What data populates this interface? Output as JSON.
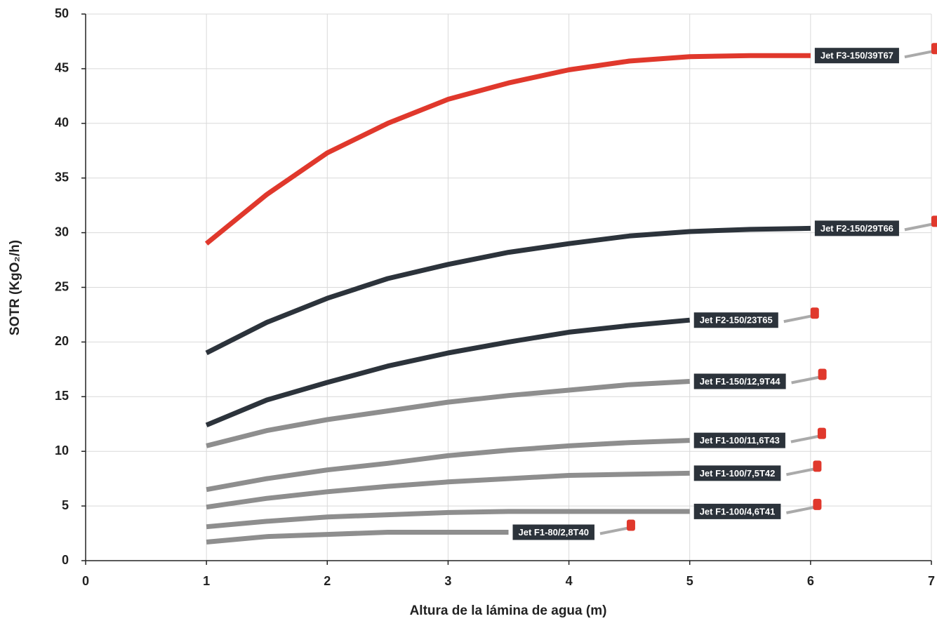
{
  "chart_data": {
    "type": "line",
    "x_label": "Altura de la lámina de agua (m)",
    "y_label": "SOTR (KgO₂/h)",
    "xlim": [
      0,
      7
    ],
    "xticks": [
      0,
      1,
      2,
      3,
      4,
      5,
      6,
      7
    ],
    "ylim": [
      0,
      50
    ],
    "yticks": [
      0,
      5,
      10,
      15,
      20,
      25,
      30,
      35,
      40,
      45,
      50
    ],
    "grid": true,
    "series": [
      {
        "name": "Jet F3-150/39T67",
        "color": "#e0382c",
        "x": [
          1,
          1.5,
          2,
          2.5,
          3,
          3.5,
          4,
          4.5,
          5,
          5.5,
          6
        ],
        "values": [
          29,
          33.5,
          37.3,
          40,
          42.2,
          43.7,
          44.9,
          45.7,
          46.1,
          46.2,
          46.2
        ]
      },
      {
        "name": "Jet F2-150/29T66",
        "color": "#2c333b",
        "x": [
          1,
          1.5,
          2,
          2.5,
          3,
          3.5,
          4,
          4.5,
          5,
          5.5,
          6
        ],
        "values": [
          19,
          21.8,
          24,
          25.8,
          27.1,
          28.2,
          29,
          29.7,
          30.1,
          30.3,
          30.4
        ]
      },
      {
        "name": "Jet F2-150/23T65",
        "color": "#2c333b",
        "x": [
          1,
          1.5,
          2,
          2.5,
          3,
          3.5,
          4,
          4.5,
          5
        ],
        "values": [
          12.4,
          14.7,
          16.3,
          17.8,
          19,
          20,
          20.9,
          21.5,
          22
        ]
      },
      {
        "name": "Jet F1-150/12,9T44",
        "color": "#8e8e8e",
        "x": [
          1,
          1.5,
          2,
          2.5,
          3,
          3.5,
          4,
          4.5,
          5
        ],
        "values": [
          10.5,
          11.9,
          12.9,
          13.7,
          14.5,
          15.1,
          15.6,
          16.1,
          16.4
        ]
      },
      {
        "name": "Jet F1-100/11,6T43",
        "color": "#8e8e8e",
        "x": [
          1,
          1.5,
          2,
          2.5,
          3,
          3.5,
          4,
          4.5,
          5
        ],
        "values": [
          6.5,
          7.5,
          8.3,
          8.9,
          9.6,
          10.1,
          10.5,
          10.8,
          11
        ]
      },
      {
        "name": "Jet F1-100/7,5T42",
        "color": "#8e8e8e",
        "x": [
          1,
          1.5,
          2,
          2.5,
          3,
          3.5,
          4,
          4.5,
          5
        ],
        "values": [
          4.9,
          5.7,
          6.3,
          6.8,
          7.2,
          7.5,
          7.8,
          7.9,
          8
        ]
      },
      {
        "name": "Jet F1-100/4,6T41",
        "color": "#8e8e8e",
        "x": [
          1,
          1.5,
          2,
          2.5,
          3,
          3.5,
          4,
          4.5,
          5
        ],
        "values": [
          3.1,
          3.6,
          4,
          4.2,
          4.4,
          4.5,
          4.5,
          4.5,
          4.5
        ]
      },
      {
        "name": "Jet F1-80/2,8T40",
        "color": "#8e8e8e",
        "x": [
          1,
          1.5,
          2,
          2.5,
          3,
          3.5
        ],
        "values": [
          1.7,
          2.2,
          2.4,
          2.6,
          2.6,
          2.6
        ]
      }
    ]
  }
}
